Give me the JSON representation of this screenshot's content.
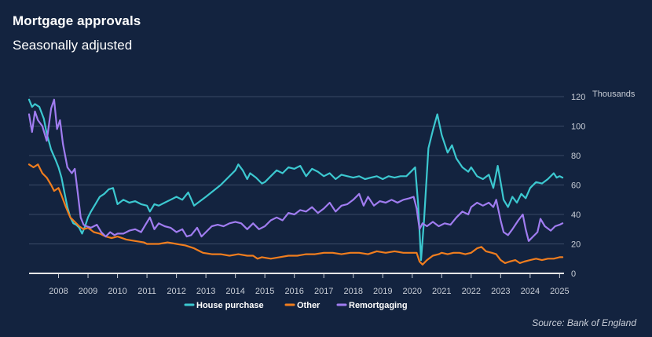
{
  "header": {
    "title": "Mortgage approvals",
    "subtitle": "Seasonally adjusted"
  },
  "footer": {
    "source": "Source: Bank of England"
  },
  "chart_data": {
    "type": "line",
    "title": "Mortgage approvals",
    "subtitle": "Seasonally adjusted",
    "ylabel": "Thousands",
    "ylim": [
      0,
      120
    ],
    "yticks": [
      0,
      20,
      40,
      60,
      80,
      100,
      120
    ],
    "xlim": [
      2007.0,
      2025.15
    ],
    "xticks": [
      "2008",
      "2009",
      "2010",
      "2011",
      "2012",
      "2013",
      "2014",
      "2015",
      "2016",
      "2017",
      "2018",
      "2019",
      "2020",
      "2021",
      "2022",
      "2023",
      "2024",
      "2025"
    ],
    "grid": "horizontal",
    "legend_position": "bottom",
    "colors": {
      "background": "#13233f",
      "grid": "#3a4a66",
      "baseline": "#e6e6e6",
      "axis_text": "#c8cdd6"
    },
    "series": [
      {
        "name": "House purchase",
        "color": "#3cc8d0",
        "points": [
          [
            2007.0,
            118
          ],
          [
            2007.1,
            113
          ],
          [
            2007.2,
            115
          ],
          [
            2007.35,
            113
          ],
          [
            2007.5,
            105
          ],
          [
            2007.6,
            95
          ],
          [
            2007.75,
            84
          ],
          [
            2007.9,
            77
          ],
          [
            2008.0,
            72
          ],
          [
            2008.1,
            65
          ],
          [
            2008.2,
            55
          ],
          [
            2008.3,
            45
          ],
          [
            2008.4,
            38
          ],
          [
            2008.5,
            34
          ],
          [
            2008.6,
            33
          ],
          [
            2008.7,
            31
          ],
          [
            2008.8,
            27
          ],
          [
            2008.9,
            32
          ],
          [
            2009.0,
            38
          ],
          [
            2009.1,
            42
          ],
          [
            2009.25,
            47
          ],
          [
            2009.4,
            52
          ],
          [
            2009.55,
            54
          ],
          [
            2009.7,
            57
          ],
          [
            2009.85,
            58
          ],
          [
            2010.0,
            47
          ],
          [
            2010.2,
            50
          ],
          [
            2010.4,
            48
          ],
          [
            2010.6,
            49
          ],
          [
            2010.8,
            47
          ],
          [
            2011.0,
            46
          ],
          [
            2011.1,
            42
          ],
          [
            2011.25,
            47
          ],
          [
            2011.4,
            46
          ],
          [
            2011.6,
            48
          ],
          [
            2011.8,
            50
          ],
          [
            2012.0,
            52
          ],
          [
            2012.2,
            50
          ],
          [
            2012.4,
            55
          ],
          [
            2012.6,
            46
          ],
          [
            2012.8,
            49
          ],
          [
            2013.0,
            52
          ],
          [
            2013.25,
            56
          ],
          [
            2013.5,
            60
          ],
          [
            2013.75,
            65
          ],
          [
            2014.0,
            70
          ],
          [
            2014.1,
            74
          ],
          [
            2014.25,
            70
          ],
          [
            2014.4,
            64
          ],
          [
            2014.5,
            68
          ],
          [
            2014.7,
            65
          ],
          [
            2014.9,
            61
          ],
          [
            2015.0,
            62
          ],
          [
            2015.2,
            66
          ],
          [
            2015.4,
            70
          ],
          [
            2015.6,
            68
          ],
          [
            2015.8,
            72
          ],
          [
            2016.0,
            71
          ],
          [
            2016.2,
            73
          ],
          [
            2016.4,
            66
          ],
          [
            2016.6,
            71
          ],
          [
            2016.8,
            69
          ],
          [
            2017.0,
            66
          ],
          [
            2017.2,
            68
          ],
          [
            2017.4,
            64
          ],
          [
            2017.6,
            67
          ],
          [
            2017.8,
            66
          ],
          [
            2018.0,
            65
          ],
          [
            2018.2,
            66
          ],
          [
            2018.4,
            64
          ],
          [
            2018.6,
            65
          ],
          [
            2018.8,
            66
          ],
          [
            2019.0,
            64
          ],
          [
            2019.2,
            66
          ],
          [
            2019.4,
            65
          ],
          [
            2019.6,
            66
          ],
          [
            2019.8,
            66
          ],
          [
            2020.0,
            70
          ],
          [
            2020.1,
            72
          ],
          [
            2020.2,
            47
          ],
          [
            2020.3,
            9
          ],
          [
            2020.4,
            36
          ],
          [
            2020.55,
            85
          ],
          [
            2020.7,
            97
          ],
          [
            2020.85,
            108
          ],
          [
            2021.0,
            94
          ],
          [
            2021.2,
            82
          ],
          [
            2021.35,
            87
          ],
          [
            2021.5,
            78
          ],
          [
            2021.7,
            72
          ],
          [
            2021.9,
            69
          ],
          [
            2022.0,
            72
          ],
          [
            2022.2,
            66
          ],
          [
            2022.4,
            64
          ],
          [
            2022.6,
            67
          ],
          [
            2022.75,
            58
          ],
          [
            2022.9,
            73
          ],
          [
            2023.0,
            62
          ],
          [
            2023.1,
            50
          ],
          [
            2023.25,
            45
          ],
          [
            2023.4,
            52
          ],
          [
            2023.55,
            48
          ],
          [
            2023.7,
            54
          ],
          [
            2023.85,
            51
          ],
          [
            2024.0,
            58
          ],
          [
            2024.2,
            62
          ],
          [
            2024.4,
            61
          ],
          [
            2024.6,
            64
          ],
          [
            2024.8,
            68
          ],
          [
            2024.9,
            65
          ],
          [
            2025.0,
            66
          ],
          [
            2025.1,
            65
          ]
        ]
      },
      {
        "name": "Other",
        "color": "#f07d1e",
        "points": [
          [
            2007.0,
            74
          ],
          [
            2007.15,
            72
          ],
          [
            2007.3,
            74
          ],
          [
            2007.45,
            68
          ],
          [
            2007.6,
            65
          ],
          [
            2007.75,
            60
          ],
          [
            2007.85,
            56
          ],
          [
            2008.0,
            58
          ],
          [
            2008.1,
            53
          ],
          [
            2008.25,
            45
          ],
          [
            2008.4,
            38
          ],
          [
            2008.55,
            35
          ],
          [
            2008.7,
            32
          ],
          [
            2008.85,
            30
          ],
          [
            2009.0,
            31
          ],
          [
            2009.2,
            28
          ],
          [
            2009.4,
            27
          ],
          [
            2009.6,
            25
          ],
          [
            2009.8,
            24
          ],
          [
            2010.0,
            25
          ],
          [
            2010.3,
            23
          ],
          [
            2010.6,
            22
          ],
          [
            2010.9,
            21
          ],
          [
            2011.0,
            20
          ],
          [
            2011.4,
            20
          ],
          [
            2011.7,
            21
          ],
          [
            2012.0,
            20
          ],
          [
            2012.3,
            19
          ],
          [
            2012.6,
            17
          ],
          [
            2012.9,
            14
          ],
          [
            2013.2,
            13
          ],
          [
            2013.5,
            13
          ],
          [
            2013.8,
            12
          ],
          [
            2014.1,
            13
          ],
          [
            2014.4,
            12
          ],
          [
            2014.6,
            12
          ],
          [
            2014.75,
            10
          ],
          [
            2014.9,
            11
          ],
          [
            2015.2,
            10
          ],
          [
            2015.5,
            11
          ],
          [
            2015.8,
            12
          ],
          [
            2016.1,
            12
          ],
          [
            2016.4,
            13
          ],
          [
            2016.7,
            13
          ],
          [
            2017.0,
            14
          ],
          [
            2017.3,
            14
          ],
          [
            2017.6,
            13
          ],
          [
            2017.9,
            14
          ],
          [
            2018.2,
            14
          ],
          [
            2018.5,
            13
          ],
          [
            2018.8,
            15
          ],
          [
            2019.1,
            14
          ],
          [
            2019.4,
            15
          ],
          [
            2019.7,
            14
          ],
          [
            2020.0,
            14
          ],
          [
            2020.15,
            14
          ],
          [
            2020.25,
            8
          ],
          [
            2020.35,
            6
          ],
          [
            2020.5,
            9
          ],
          [
            2020.7,
            12
          ],
          [
            2020.9,
            13
          ],
          [
            2021.0,
            14
          ],
          [
            2021.2,
            13
          ],
          [
            2021.4,
            14
          ],
          [
            2021.6,
            14
          ],
          [
            2021.8,
            13
          ],
          [
            2022.0,
            14
          ],
          [
            2022.2,
            17
          ],
          [
            2022.35,
            18
          ],
          [
            2022.5,
            15
          ],
          [
            2022.7,
            14
          ],
          [
            2022.85,
            13
          ],
          [
            2023.0,
            9
          ],
          [
            2023.15,
            7
          ],
          [
            2023.3,
            8
          ],
          [
            2023.5,
            9
          ],
          [
            2023.65,
            7
          ],
          [
            2023.8,
            8
          ],
          [
            2024.0,
            9
          ],
          [
            2024.2,
            10
          ],
          [
            2024.4,
            9
          ],
          [
            2024.6,
            10
          ],
          [
            2024.8,
            10
          ],
          [
            2025.0,
            11
          ],
          [
            2025.1,
            11
          ]
        ]
      },
      {
        "name": "Remortgaging",
        "color": "#a07cf0",
        "points": [
          [
            2007.0,
            108
          ],
          [
            2007.1,
            96
          ],
          [
            2007.2,
            110
          ],
          [
            2007.3,
            104
          ],
          [
            2007.45,
            100
          ],
          [
            2007.6,
            90
          ],
          [
            2007.75,
            112
          ],
          [
            2007.85,
            118
          ],
          [
            2007.95,
            98
          ],
          [
            2008.05,
            104
          ],
          [
            2008.15,
            88
          ],
          [
            2008.3,
            72
          ],
          [
            2008.45,
            68
          ],
          [
            2008.55,
            71
          ],
          [
            2008.65,
            55
          ],
          [
            2008.75,
            38
          ],
          [
            2008.85,
            33
          ],
          [
            2008.95,
            32
          ],
          [
            2009.1,
            31
          ],
          [
            2009.3,
            33
          ],
          [
            2009.45,
            28
          ],
          [
            2009.6,
            25
          ],
          [
            2009.75,
            28
          ],
          [
            2009.9,
            26
          ],
          [
            2010.0,
            27
          ],
          [
            2010.2,
            27
          ],
          [
            2010.4,
            29
          ],
          [
            2010.6,
            30
          ],
          [
            2010.8,
            28
          ],
          [
            2010.95,
            33
          ],
          [
            2011.1,
            38
          ],
          [
            2011.25,
            30
          ],
          [
            2011.4,
            34
          ],
          [
            2011.6,
            32
          ],
          [
            2011.8,
            31
          ],
          [
            2012.0,
            28
          ],
          [
            2012.2,
            30
          ],
          [
            2012.35,
            25
          ],
          [
            2012.5,
            26
          ],
          [
            2012.7,
            31
          ],
          [
            2012.85,
            25
          ],
          [
            2013.0,
            28
          ],
          [
            2013.2,
            32
          ],
          [
            2013.4,
            33
          ],
          [
            2013.6,
            32
          ],
          [
            2013.8,
            34
          ],
          [
            2014.0,
            35
          ],
          [
            2014.2,
            34
          ],
          [
            2014.4,
            30
          ],
          [
            2014.6,
            34
          ],
          [
            2014.8,
            30
          ],
          [
            2015.0,
            32
          ],
          [
            2015.2,
            36
          ],
          [
            2015.4,
            38
          ],
          [
            2015.6,
            36
          ],
          [
            2015.8,
            41
          ],
          [
            2016.0,
            40
          ],
          [
            2016.2,
            43
          ],
          [
            2016.4,
            42
          ],
          [
            2016.6,
            45
          ],
          [
            2016.8,
            41
          ],
          [
            2017.0,
            44
          ],
          [
            2017.2,
            48
          ],
          [
            2017.4,
            42
          ],
          [
            2017.6,
            46
          ],
          [
            2017.8,
            47
          ],
          [
            2018.0,
            50
          ],
          [
            2018.2,
            54
          ],
          [
            2018.35,
            46
          ],
          [
            2018.5,
            52
          ],
          [
            2018.7,
            46
          ],
          [
            2018.9,
            49
          ],
          [
            2019.1,
            48
          ],
          [
            2019.3,
            50
          ],
          [
            2019.5,
            48
          ],
          [
            2019.7,
            50
          ],
          [
            2019.9,
            51
          ],
          [
            2020.05,
            52
          ],
          [
            2020.15,
            44
          ],
          [
            2020.25,
            30
          ],
          [
            2020.35,
            34
          ],
          [
            2020.5,
            32
          ],
          [
            2020.7,
            35
          ],
          [
            2020.9,
            32
          ],
          [
            2021.1,
            34
          ],
          [
            2021.3,
            33
          ],
          [
            2021.5,
            38
          ],
          [
            2021.7,
            42
          ],
          [
            2021.9,
            40
          ],
          [
            2022.0,
            45
          ],
          [
            2022.2,
            48
          ],
          [
            2022.4,
            46
          ],
          [
            2022.6,
            48
          ],
          [
            2022.75,
            45
          ],
          [
            2022.85,
            50
          ],
          [
            2023.0,
            36
          ],
          [
            2023.1,
            28
          ],
          [
            2023.25,
            26
          ],
          [
            2023.4,
            30
          ],
          [
            2023.6,
            36
          ],
          [
            2023.75,
            40
          ],
          [
            2023.85,
            30
          ],
          [
            2023.95,
            22
          ],
          [
            2024.1,
            25
          ],
          [
            2024.25,
            28
          ],
          [
            2024.35,
            37
          ],
          [
            2024.5,
            32
          ],
          [
            2024.7,
            29
          ],
          [
            2024.85,
            32
          ],
          [
            2025.0,
            33
          ],
          [
            2025.1,
            34
          ]
        ]
      }
    ]
  }
}
